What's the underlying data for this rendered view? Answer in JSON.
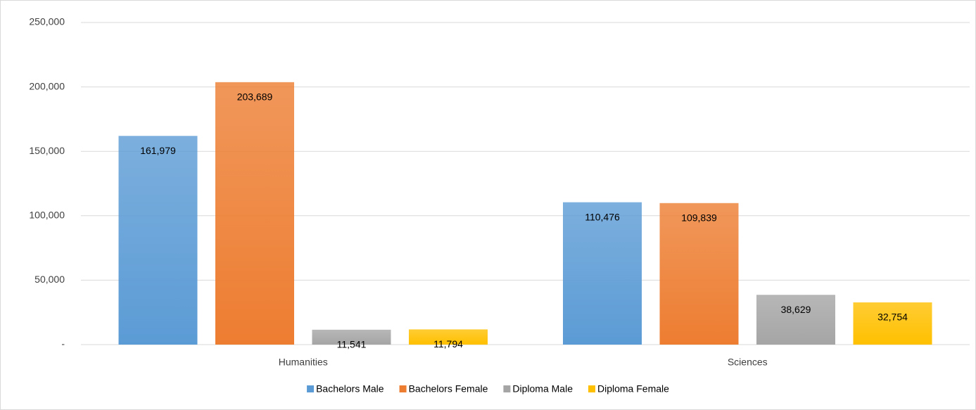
{
  "chart_data": {
    "type": "bar",
    "categories": [
      "Humanities",
      "Sciences"
    ],
    "series": [
      {
        "name": "Bachelors Male",
        "color": "#5b9bd5",
        "values": [
          161979,
          110476
        ],
        "value_labels": [
          "161,979",
          "110,476"
        ]
      },
      {
        "name": "Bachelors Female",
        "color": "#ed7d31",
        "values": [
          203689,
          109839
        ],
        "value_labels": [
          "203,689",
          "109,839"
        ]
      },
      {
        "name": "Diploma Male",
        "color": "#a5a5a5",
        "values": [
          11541,
          38629
        ],
        "value_labels": [
          "11,541",
          "38,629"
        ]
      },
      {
        "name": "Diploma Female",
        "color": "#ffc000",
        "values": [
          11794,
          32754
        ],
        "value_labels": [
          "11,794",
          "32,754"
        ]
      }
    ],
    "ylim": [
      0,
      250000
    ],
    "yticks": [
      {
        "value": 0,
        "label": "-"
      },
      {
        "value": 50000,
        "label": "50,000"
      },
      {
        "value": 100000,
        "label": "100,000"
      },
      {
        "value": 150000,
        "label": "150,000"
      },
      {
        "value": 200000,
        "label": "200,000"
      },
      {
        "value": 250000,
        "label": "250,000"
      }
    ],
    "grid": true,
    "legend": "bottom"
  }
}
